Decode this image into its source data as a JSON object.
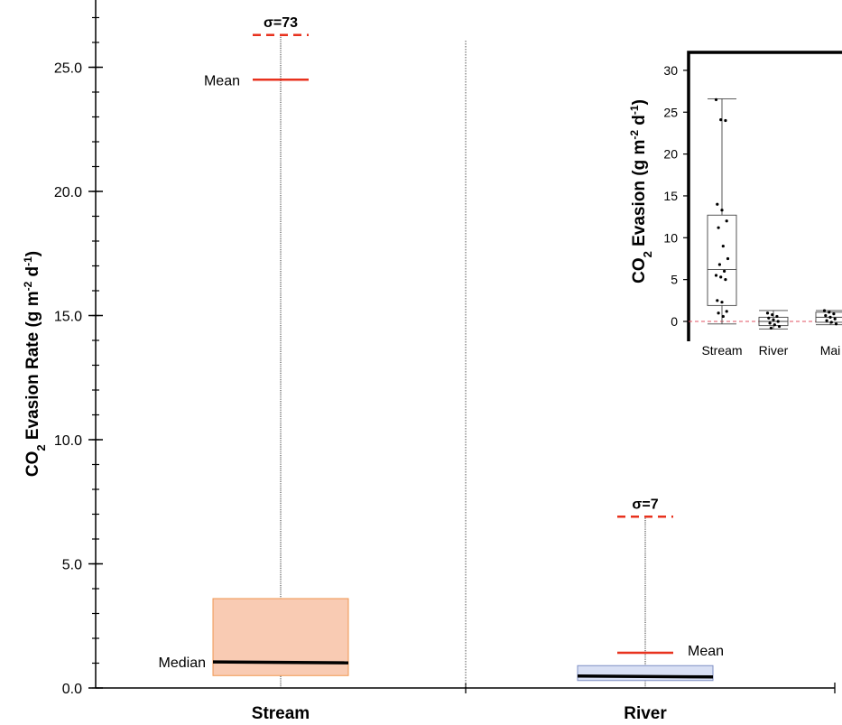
{
  "chart_data": [
    {
      "type": "box",
      "ylabel": {
        "main": "CO",
        "sub": "2",
        "rest": " Evasion Rate (g m",
        "sup1": "-2",
        "mid": " d",
        "sup2": "-1",
        "end": ")"
      },
      "ylim": [
        0,
        29
      ],
      "yticks": [
        "0.0",
        "5.0",
        "10.0",
        "15.0",
        "20.0",
        "25.0"
      ],
      "ytick_values": [
        0,
        5,
        10,
        15,
        20,
        25
      ],
      "categories": [
        "Stream",
        "River"
      ],
      "boxes": [
        {
          "name": "Stream",
          "q1": 0.5,
          "median": 1.05,
          "q3": 3.6,
          "whisker_low": 0,
          "whisker_high": 26.3,
          "mean": 24.5,
          "sigma": 26.3,
          "sigma_label": "σ=73",
          "mean_label": "Mean",
          "median_label": "Median",
          "fill": "#f9cbb3",
          "stroke": "#f0964f"
        },
        {
          "name": "River",
          "q1": 0.3,
          "median": 0.48,
          "q3": 0.9,
          "whisker_low": 0,
          "whisker_high": 6.9,
          "mean": 1.42,
          "sigma": 6.9,
          "sigma_label": "σ=7",
          "mean_label": "Mean",
          "fill": "#d9e0f4",
          "stroke": "#7f8fc4"
        }
      ],
      "colors": {
        "mean": "#e8321e",
        "sigma": "#e8321e",
        "median": "#000000"
      }
    },
    {
      "type": "box",
      "inset": true,
      "ylabel": {
        "main": "CO",
        "sub": "2",
        "rest": " Evasion (g m",
        "sup1": "-2",
        "mid": " d",
        "sup2": "-1",
        "end": ")"
      },
      "ylim": [
        -1,
        31
      ],
      "yticks": [
        "0",
        "5",
        "10",
        "15",
        "20",
        "25",
        "30"
      ],
      "ytick_values": [
        0,
        5,
        10,
        15,
        20,
        25,
        30
      ],
      "categories": [
        "Stream",
        "River",
        "Mai"
      ],
      "boxes": [
        {
          "name": "Stream",
          "q1": 1.9,
          "median": 6.2,
          "q3": 12.7,
          "whisker_low": -0.3,
          "whisker_high": 26.6,
          "points": [
            26.5,
            24.1,
            24.0,
            14.0,
            13.3,
            12.0,
            11.2,
            9.0,
            7.5,
            6.8,
            6.0,
            5.5,
            5.3,
            5.0,
            2.5,
            2.3,
            1.2,
            1.0,
            0.6
          ]
        },
        {
          "name": "River",
          "q1": -0.5,
          "median": 0.0,
          "q3": 0.5,
          "whisker_low": -0.9,
          "whisker_high": 1.3,
          "points": [
            1.0,
            0.8,
            0.6,
            0.4,
            0.2,
            0.0,
            -0.2,
            -0.4,
            -0.6,
            -0.8
          ]
        },
        {
          "name": "Mai",
          "q1": -0.1,
          "median": 0.5,
          "q3": 1.1,
          "whisker_low": -0.4,
          "whisker_high": 1.3,
          "points": [
            1.3,
            1.1,
            0.9,
            0.7,
            0.5,
            0.3,
            0.1,
            -0.1,
            -0.3
          ]
        }
      ],
      "zero_line_color": "#e05060"
    }
  ]
}
